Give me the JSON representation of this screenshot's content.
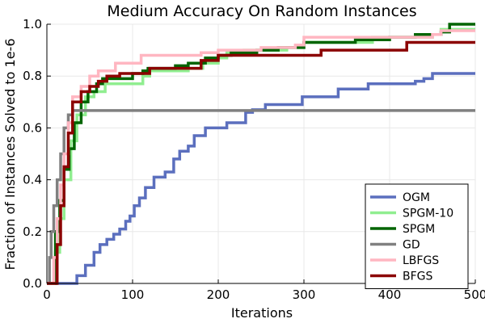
{
  "chart_data": {
    "type": "line",
    "title": "Medium Accuracy On Random Instances",
    "xlabel": "Iterations",
    "ylabel": "Fraction of Instances Solved to 1e-6",
    "xlim": [
      0,
      500
    ],
    "ylim": [
      0.0,
      1.0
    ],
    "xticks": [
      0,
      100,
      200,
      300,
      400,
      500
    ],
    "yticks": [
      0.0,
      0.2,
      0.4,
      0.6,
      0.8,
      1.0
    ],
    "xtick_labels": [
      "0",
      "100",
      "200",
      "300",
      "400",
      "500"
    ],
    "ytick_labels": [
      "0.0",
      "0.2",
      "0.4",
      "0.6",
      "0.8",
      "1.0"
    ],
    "grid": true,
    "legend_position": "bottom-right",
    "step": true,
    "series": [
      {
        "name": "OGM",
        "color": "#5b6fbe",
        "x": [
          0,
          25,
          35,
          45,
          55,
          62,
          70,
          78,
          85,
          92,
          97,
          102,
          108,
          115,
          125,
          138,
          148,
          155,
          165,
          172,
          185,
          195,
          210,
          232,
          240,
          255,
          298,
          340,
          375,
          430,
          440,
          450,
          500
        ],
        "y": [
          0.0,
          0.0,
          0.03,
          0.07,
          0.12,
          0.15,
          0.17,
          0.19,
          0.21,
          0.24,
          0.26,
          0.3,
          0.33,
          0.37,
          0.41,
          0.43,
          0.48,
          0.51,
          0.53,
          0.57,
          0.6,
          0.6,
          0.62,
          0.66,
          0.67,
          0.69,
          0.72,
          0.75,
          0.77,
          0.78,
          0.79,
          0.81,
          0.81
        ]
      },
      {
        "name": "SPGM-10",
        "color": "#90ee90",
        "x": [
          0,
          6,
          10,
          15,
          20,
          28,
          35,
          45,
          55,
          68,
          100,
          112,
          120,
          165,
          182,
          200,
          210,
          230,
          280,
          300,
          380,
          450,
          460,
          500
        ],
        "y": [
          0.0,
          0.0,
          0.12,
          0.25,
          0.4,
          0.55,
          0.65,
          0.72,
          0.74,
          0.77,
          0.77,
          0.8,
          0.82,
          0.83,
          0.85,
          0.87,
          0.89,
          0.9,
          0.91,
          0.93,
          0.95,
          0.96,
          0.98,
          0.98
        ]
      },
      {
        "name": "SPGM",
        "color": "#006400",
        "x": [
          0,
          6,
          10,
          15,
          20,
          26,
          32,
          40,
          48,
          58,
          65,
          100,
          112,
          118,
          150,
          165,
          185,
          200,
          215,
          245,
          270,
          300,
          360,
          400,
          430,
          460,
          470,
          500
        ],
        "y": [
          0.0,
          0.0,
          0.2,
          0.32,
          0.44,
          0.52,
          0.62,
          0.7,
          0.74,
          0.77,
          0.79,
          0.81,
          0.82,
          0.83,
          0.84,
          0.85,
          0.87,
          0.88,
          0.89,
          0.9,
          0.91,
          0.93,
          0.94,
          0.95,
          0.96,
          0.97,
          1.0,
          1.0
        ]
      },
      {
        "name": "GD",
        "color": "#808080",
        "x": [
          0,
          3,
          5,
          8,
          12,
          16,
          20,
          25,
          30,
          500
        ],
        "y": [
          0.0,
          0.1,
          0.2,
          0.3,
          0.4,
          0.5,
          0.6,
          0.65,
          0.667,
          0.667
        ]
      },
      {
        "name": "LBFGS",
        "color": "#ffb6c1",
        "x": [
          0,
          5,
          8,
          12,
          16,
          20,
          25,
          30,
          40,
          50,
          60,
          80,
          110,
          180,
          200,
          250,
          290,
          300,
          360,
          450,
          460,
          500
        ],
        "y": [
          0.0,
          0.0,
          0.1,
          0.25,
          0.38,
          0.5,
          0.62,
          0.72,
          0.76,
          0.8,
          0.82,
          0.85,
          0.88,
          0.89,
          0.9,
          0.91,
          0.92,
          0.95,
          0.95,
          0.96,
          0.975,
          0.975
        ]
      },
      {
        "name": "BFGS",
        "color": "#8b0000",
        "x": [
          0,
          8,
          12,
          16,
          20,
          25,
          30,
          40,
          50,
          60,
          70,
          85,
          100,
          120,
          180,
          200,
          250,
          290,
          320,
          420,
          500
        ],
        "y": [
          0.0,
          0.0,
          0.15,
          0.3,
          0.45,
          0.58,
          0.7,
          0.74,
          0.76,
          0.78,
          0.8,
          0.81,
          0.81,
          0.83,
          0.86,
          0.88,
          0.88,
          0.88,
          0.9,
          0.93,
          0.93
        ]
      }
    ]
  }
}
